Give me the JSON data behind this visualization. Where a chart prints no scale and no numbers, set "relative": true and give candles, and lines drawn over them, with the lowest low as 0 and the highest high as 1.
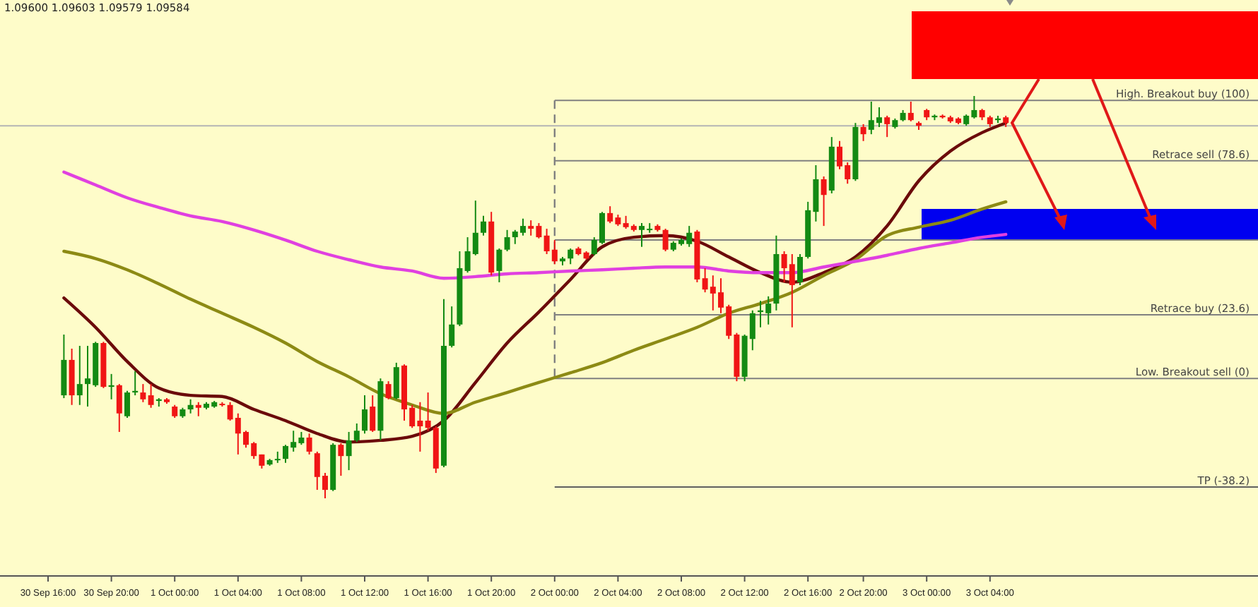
{
  "chart_data": {
    "type": "candlestick",
    "relative": true,
    "annotations": [
      "1.09600 1.09603 1.09579 1.09584"
    ],
    "categories": [
      "30 Sep 16:00",
      null,
      null,
      null,
      null,
      null,
      null,
      null,
      "30 Sep 20:00",
      null,
      null,
      null,
      null,
      null,
      null,
      null,
      "1 Oct 00:00",
      null,
      null,
      null,
      null,
      null,
      null,
      null,
      "1 Oct 04:00",
      null,
      null,
      null,
      null,
      null,
      null,
      null,
      "1 Oct 08:00",
      null,
      null,
      null,
      null,
      null,
      null,
      null,
      "1 Oct 12:00",
      null,
      null,
      null,
      null,
      null,
      null,
      null,
      "1 Oct 16:00",
      null,
      null,
      null,
      null,
      null,
      null,
      null,
      "1 Oct 20:00",
      null,
      null,
      null,
      null,
      null,
      null,
      null,
      "2 Oct 00:00",
      null,
      null,
      null,
      null,
      null,
      null,
      null,
      "2 Oct 04:00",
      null,
      null,
      null,
      null,
      null,
      null,
      null,
      "2 Oct 08:00",
      null,
      null,
      null,
      null,
      null,
      null,
      null,
      "2 Oct 12:00",
      null,
      null,
      null,
      null,
      null,
      null,
      null,
      "2 Oct 16:00",
      null,
      null,
      null,
      null,
      null,
      null,
      "2 Oct 20:00",
      null,
      null,
      null,
      null,
      null,
      null,
      null,
      "3 Oct 00:00",
      null,
      null,
      null,
      null,
      null,
      null,
      null,
      "3 Oct 04:00",
      null,
      null
    ],
    "ohlc": [
      null,
      null,
      [
        0.256,
        0.407,
        0.249,
        0.344
      ],
      [
        0.344,
        0.372,
        0.232,
        0.256
      ],
      [
        0.256,
        0.379,
        0.232,
        0.284
      ],
      [
        0.284,
        0.379,
        0.228,
        0.298
      ],
      [
        0.281,
        0.389,
        0.277,
        0.386
      ],
      [
        0.386,
        0.389,
        0.274,
        0.277
      ],
      [
        0.277,
        0.309,
        0.246,
        0.281
      ],
      [
        0.281,
        0.284,
        0.165,
        0.211
      ],
      [
        0.204,
        0.267,
        0.2,
        0.263
      ],
      [
        0.263,
        0.316,
        0.256,
        0.267
      ],
      [
        0.263,
        0.284,
        0.239,
        0.246
      ],
      [
        0.256,
        0.284,
        0.225,
        0.232
      ],
      [
        0.242,
        0.249,
        0.228,
        0.246
      ],
      [
        0.246,
        0.249,
        0.235,
        0.239
      ],
      [
        0.228,
        0.232,
        0.2,
        0.204
      ],
      [
        0.204,
        0.225,
        0.2,
        0.221
      ],
      [
        0.221,
        0.246,
        0.211,
        0.232
      ],
      [
        0.232,
        0.239,
        0.204,
        0.225
      ],
      [
        0.225,
        0.239,
        0.221,
        0.235
      ],
      [
        0.228,
        0.242,
        0.225,
        0.239
      ],
      [
        0.235,
        0.239,
        0.228,
        0.232
      ],
      [
        0.232,
        0.239,
        0.193,
        0.196
      ],
      [
        0.2,
        0.211,
        0.109,
        0.161
      ],
      [
        0.165,
        0.168,
        0.126,
        0.133
      ],
      [
        0.137,
        0.14,
        0.098,
        0.105
      ],
      [
        0.109,
        0.109,
        0.074,
        0.081
      ],
      [
        0.084,
        0.098,
        0.081,
        0.095
      ],
      [
        0.095,
        0.116,
        0.088,
        0.098
      ],
      [
        0.098,
        0.133,
        0.088,
        0.13
      ],
      [
        0.126,
        0.168,
        0.116,
        0.14
      ],
      [
        0.137,
        0.165,
        0.133,
        0.151
      ],
      [
        0.151,
        0.161,
        0.109,
        0.116
      ],
      [
        0.112,
        0.116,
        0.021,
        0.053
      ],
      [
        0.056,
        0.063,
        0,
        0.021
      ],
      [
        0.021,
        0.137,
        0.018,
        0.133
      ],
      [
        0.133,
        0.137,
        0.056,
        0.105
      ],
      [
        0.105,
        0.165,
        0.07,
        0.144
      ],
      [
        0.144,
        0.186,
        0.14,
        0.168
      ],
      [
        0.168,
        0.256,
        0.161,
        0.221
      ],
      [
        0.228,
        0.256,
        0.165,
        0.168
      ],
      [
        0.168,
        0.298,
        0.144,
        0.291
      ],
      [
        0.284,
        0.291,
        0.246,
        0.249
      ],
      [
        0.249,
        0.337,
        0.246,
        0.326
      ],
      [
        0.33,
        0.333,
        0.193,
        0.221
      ],
      [
        0.225,
        0.232,
        0.175,
        0.179
      ],
      [
        0.193,
        0.239,
        0.116,
        0.179
      ],
      [
        0.193,
        0.263,
        0.168,
        0.175
      ],
      [
        0.175,
        0.179,
        0.063,
        0.074
      ],
      [
        0.081,
        0.495,
        0.077,
        0.379
      ],
      [
        0.379,
        0.477,
        0.375,
        0.432
      ],
      [
        0.432,
        0.614,
        0.428,
        0.572
      ],
      [
        0.565,
        0.649,
        0.561,
        0.614
      ],
      [
        0.607,
        0.74,
        0.604,
        0.66
      ],
      [
        0.66,
        0.702,
        0.653,
        0.688
      ],
      [
        0.688,
        0.712,
        0.554,
        0.561
      ],
      [
        0.565,
        0.621,
        0.537,
        0.618
      ],
      [
        0.618,
        0.667,
        0.614,
        0.649
      ],
      [
        0.649,
        0.667,
        0.632,
        0.663
      ],
      [
        0.66,
        0.695,
        0.653,
        0.677
      ],
      [
        0.677,
        0.691,
        0.653,
        0.67
      ],
      [
        0.677,
        0.684,
        0.646,
        0.649
      ],
      [
        0.653,
        0.67,
        0.607,
        0.614
      ],
      [
        0.618,
        0.642,
        0.582,
        0.589
      ],
      [
        0.589,
        0.6,
        0.579,
        0.596
      ],
      [
        0.596,
        0.621,
        0.582,
        0.618
      ],
      [
        0.621,
        0.625,
        0.604,
        0.607
      ],
      [
        0.611,
        0.614,
        0.593,
        0.596
      ],
      [
        0.607,
        0.649,
        0.604,
        0.642
      ],
      [
        0.635,
        0.712,
        0.632,
        0.709
      ],
      [
        0.709,
        0.726,
        0.684,
        0.688
      ],
      [
        0.698,
        0.705,
        0.677,
        0.681
      ],
      [
        0.684,
        0.702,
        0.67,
        0.674
      ],
      [
        0.677,
        0.681,
        0.663,
        0.667
      ],
      [
        0.667,
        0.684,
        0.625,
        0.677
      ],
      [
        0.667,
        0.684,
        0.66,
        0.67
      ],
      [
        0.677,
        0.681,
        0.663,
        0.667
      ],
      [
        0.667,
        0.67,
        0.614,
        0.618
      ],
      [
        0.618,
        0.639,
        0.614,
        0.635
      ],
      [
        0.632,
        0.646,
        0.628,
        0.642
      ],
      [
        0.632,
        0.677,
        0.625,
        0.66
      ],
      [
        0.663,
        0.667,
        0.537,
        0.544
      ],
      [
        0.547,
        0.572,
        0.512,
        0.519
      ],
      [
        0.526,
        0.554,
        0.467,
        0.509
      ],
      [
        0.512,
        0.547,
        0.46,
        0.474
      ],
      [
        0.477,
        0.481,
        0.396,
        0.404
      ],
      [
        0.407,
        0.411,
        0.291,
        0.302
      ],
      [
        0.302,
        0.407,
        0.291,
        0.404
      ],
      [
        0.396,
        0.467,
        0.368,
        0.46
      ],
      [
        0.463,
        0.491,
        0.425,
        0.467
      ],
      [
        0.46,
        0.502,
        0.432,
        0.484
      ],
      [
        0.484,
        0.653,
        0.467,
        0.607
      ],
      [
        0.607,
        0.614,
        0.537,
        0.572
      ],
      [
        0.582,
        0.607,
        0.425,
        0.53
      ],
      [
        0.537,
        0.607,
        0.53,
        0.6
      ],
      [
        0.6,
        0.737,
        0.596,
        0.716
      ],
      [
        0.712,
        0.828,
        0.688,
        0.793
      ],
      [
        0.793,
        0.8,
        0.677,
        0.754
      ],
      [
        0.765,
        0.898,
        0.758,
        0.874
      ],
      [
        0.874,
        0.888,
        0.818,
        0.825
      ],
      [
        0.828,
        0.835,
        0.782,
        0.793
      ],
      [
        0.793,
        0.933,
        0.789,
        0.923
      ],
      [
        0.923,
        0.93,
        0.888,
        0.905
      ],
      [
        0.916,
        0.986,
        0.905,
        0.94
      ],
      [
        0.933,
        0.972,
        0.923,
        0.947
      ],
      [
        0.947,
        0.951,
        0.898,
        0.93
      ],
      [
        0.923,
        0.944,
        0.919,
        0.94
      ],
      [
        0.94,
        0.965,
        0.937,
        0.958
      ],
      [
        0.958,
        0.986,
        0.937,
        0.94
      ],
      [
        0.933,
        0.937,
        0.916,
        0.926
      ],
      [
        0.965,
        0.968,
        0.94,
        0.947
      ],
      [
        0.947,
        0.954,
        0.94,
        0.951
      ],
      [
        0.951,
        0.954,
        0.944,
        0.947
      ],
      [
        0.947,
        0.951,
        0.933,
        0.937
      ],
      [
        0.944,
        0.947,
        0.93,
        0.933
      ],
      [
        0.93,
        0.954,
        0.926,
        0.951
      ],
      [
        0.947,
        1,
        0.944,
        0.965
      ],
      [
        0.965,
        0.968,
        0.94,
        0.947
      ],
      [
        0.947,
        0.951,
        0.923,
        0.93
      ],
      [
        0.94,
        0.951,
        0.933,
        0.944
      ],
      [
        0.947,
        0.951,
        0.923,
        0.933
      ]
    ],
    "series": [
      {
        "type": "line",
        "color": "#6b0a0a",
        "values": [
          null,
          null,
          0.498,
          null,
          null,
          null,
          0.425,
          null,
          null,
          null,
          0.34,
          null,
          null,
          null,
          0.274,
          null,
          null,
          null,
          0.256,
          null,
          null,
          null,
          0.253,
          null,
          null,
          null,
          0.221,
          null,
          null,
          null,
          0.193,
          null,
          null,
          null,
          0.161,
          null,
          null,
          null,
          0.14,
          null,
          null,
          null,
          0.144,
          null,
          null,
          null,
          0.154,
          null,
          null,
          null,
          0.193,
          null,
          null,
          null,
          0.288,
          null,
          null,
          null,
          0.386,
          null,
          null,
          null,
          0.463,
          null,
          null,
          null,
          0.544,
          null,
          null,
          null,
          0.625,
          null,
          null,
          null,
          0.649,
          null,
          null,
          null,
          0.653,
          null,
          null,
          null,
          0.639,
          null,
          null,
          null,
          0.6,
          null,
          null,
          null,
          0.561,
          null,
          null,
          null,
          0.537,
          null,
          null,
          null,
          0.561,
          null,
          null,
          null,
          0.6,
          null,
          null,
          null,
          0.677,
          null,
          null,
          null,
          0.789,
          null,
          null,
          null,
          0.863,
          null,
          null,
          null,
          0.909,
          null,
          null,
          0.933
        ]
      },
      {
        "type": "line",
        "color": "#8c8a14",
        "values": [
          null,
          null,
          0.614,
          null,
          null,
          null,
          0.596,
          null,
          null,
          null,
          0.568,
          null,
          null,
          null,
          0.533,
          null,
          null,
          null,
          0.495,
          null,
          null,
          null,
          0.46,
          null,
          null,
          null,
          0.425,
          null,
          null,
          null,
          0.386,
          null,
          null,
          null,
          0.34,
          null,
          null,
          null,
          0.302,
          null,
          null,
          null,
          0.26,
          null,
          null,
          null,
          0.232,
          null,
          null,
          null,
          0.211,
          null,
          null,
          null,
          0.239,
          null,
          null,
          null,
          0.263,
          null,
          null,
          null,
          0.288,
          null,
          null,
          null,
          0.312,
          null,
          null,
          null,
          0.337,
          null,
          null,
          null,
          0.368,
          null,
          null,
          null,
          0.396,
          null,
          null,
          null,
          0.425,
          null,
          null,
          null,
          0.46,
          null,
          null,
          null,
          0.484,
          null,
          null,
          null,
          0.512,
          null,
          null,
          null,
          0.554,
          null,
          null,
          null,
          0.593,
          null,
          null,
          null,
          0.653,
          null,
          null,
          null,
          0.674,
          null,
          null,
          null,
          0.691,
          null,
          null,
          null,
          0.719,
          null,
          null,
          0.737
        ]
      },
      {
        "type": "line",
        "color": "#e040e0",
        "values": [
          null,
          null,
          0.811,
          null,
          null,
          null,
          0.779,
          null,
          null,
          null,
          0.747,
          null,
          null,
          null,
          0.723,
          null,
          null,
          null,
          0.702,
          null,
          null,
          null,
          0.688,
          null,
          null,
          null,
          0.667,
          null,
          null,
          null,
          0.642,
          null,
          null,
          null,
          0.614,
          null,
          null,
          null,
          0.593,
          null,
          null,
          null,
          0.575,
          null,
          null,
          null,
          0.565,
          null,
          null,
          null,
          0.547,
          null,
          null,
          null,
          0.551,
          null,
          null,
          null,
          0.558,
          null,
          null,
          null,
          0.561,
          null,
          null,
          null,
          0.565,
          null,
          null,
          null,
          0.568,
          null,
          null,
          null,
          0.572,
          null,
          null,
          null,
          0.575,
          null,
          null,
          null,
          0.575,
          null,
          null,
          null,
          0.565,
          null,
          null,
          null,
          0.561,
          null,
          null,
          null,
          0.561,
          null,
          null,
          null,
          0.575,
          null,
          null,
          null,
          0.589,
          null,
          null,
          null,
          0.604,
          null,
          null,
          null,
          0.621,
          null,
          null,
          null,
          0.635,
          null,
          null,
          null,
          0.649,
          null,
          null,
          0.656
        ]
      }
    ],
    "ref_lines": [
      {
        "axis": "x",
        "value": "2 Oct 00:00",
        "color": "#808080",
        "line_style": "dashed"
      },
      {
        "axis": "y",
        "value": 0.926,
        "color": "#b4b4b4"
      },
      {
        "axis": "y",
        "value": 0.989,
        "label": "High. Breakout buy (100)",
        "color": "#808080"
      },
      {
        "axis": "y",
        "value": 0.839,
        "label": "Retrace sell (78.6)",
        "color": "#808080"
      },
      {
        "axis": "y",
        "value": 0.642,
        "label": null,
        "color": "#808080"
      },
      {
        "axis": "y",
        "value": 0.456,
        "label": "Retrace buy (23.6)",
        "color": "#808080"
      },
      {
        "axis": "y",
        "value": 0.298,
        "label": "Low. Breakout sell (0)",
        "color": "#808080"
      },
      {
        "axis": "y",
        "value": 0.028,
        "label": "TP (-38.2)",
        "color": "#606060"
      }
    ]
  }
}
